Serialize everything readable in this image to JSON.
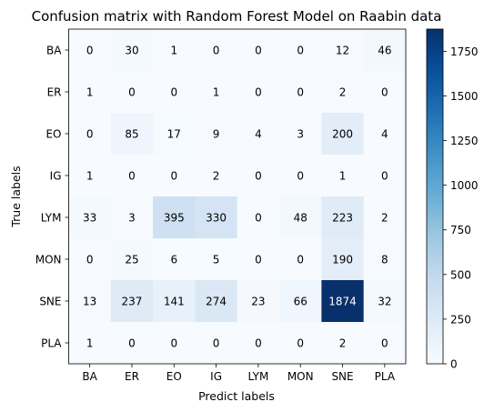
{
  "chart_data": {
    "type": "heatmap",
    "title": "Confusion matrix with Random Forest Model on Raabin data",
    "xlabel": "Predict labels",
    "ylabel": "True labels",
    "x_categories": [
      "BA",
      "ER",
      "EO",
      "IG",
      "LYM",
      "MON",
      "SNE",
      "PLA"
    ],
    "y_categories": [
      "BA",
      "ER",
      "EO",
      "IG",
      "LYM",
      "MON",
      "SNE",
      "PLA"
    ],
    "values": [
      [
        0,
        30,
        1,
        0,
        0,
        0,
        12,
        46
      ],
      [
        1,
        0,
        0,
        1,
        0,
        0,
        2,
        0
      ],
      [
        0,
        85,
        17,
        9,
        4,
        3,
        200,
        4
      ],
      [
        1,
        0,
        0,
        2,
        0,
        0,
        1,
        0
      ],
      [
        33,
        3,
        395,
        330,
        0,
        48,
        223,
        2
      ],
      [
        0,
        25,
        6,
        5,
        0,
        0,
        190,
        8
      ],
      [
        13,
        237,
        141,
        274,
        23,
        66,
        1874,
        32
      ],
      [
        1,
        0,
        0,
        0,
        0,
        0,
        2,
        0
      ]
    ],
    "colormap": "Blues",
    "colorbar": {
      "range": [
        0,
        1874
      ],
      "ticks": [
        0,
        250,
        500,
        750,
        1000,
        1250,
        1500,
        1750
      ]
    },
    "grid": false
  }
}
